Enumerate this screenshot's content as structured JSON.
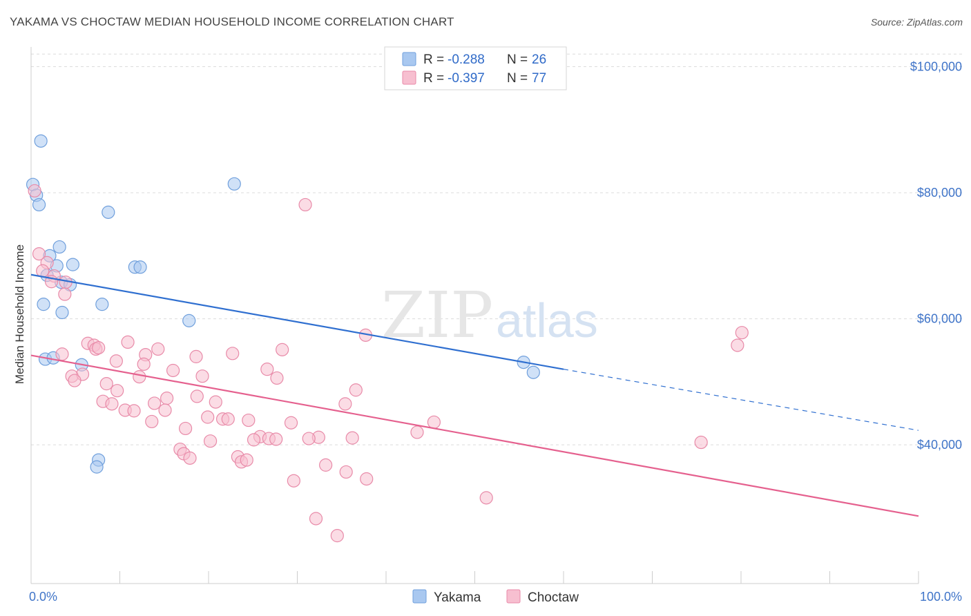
{
  "header": {
    "title": "YAKAMA VS CHOCTAW MEDIAN HOUSEHOLD INCOME CORRELATION CHART",
    "source": "Source: ZipAtlas.com"
  },
  "watermark": {
    "zip": "ZIP",
    "atlas": "atlas"
  },
  "legend_top": [
    {
      "r_label": "R = ",
      "r_value": "-0.288",
      "n_label": "N = ",
      "n_value": "26",
      "color": "#a9c8f0",
      "stroke": "#6f9fdc"
    },
    {
      "r_label": "R = ",
      "r_value": "-0.397",
      "n_label": "N = ",
      "n_value": "77",
      "color": "#f7bfd0",
      "stroke": "#e88aa8"
    }
  ],
  "legend_bottom": [
    {
      "label": "Yakama",
      "color": "#a9c8f0",
      "stroke": "#6f9fdc"
    },
    {
      "label": "Choctaw",
      "color": "#f7bfd0",
      "stroke": "#e88aa8"
    }
  ],
  "chart_data": {
    "type": "scatter",
    "title": "YAKAMA VS CHOCTAW MEDIAN HOUSEHOLD INCOME CORRELATION CHART",
    "xlabel": "",
    "ylabel": "Median Household Income",
    "xlim": [
      0,
      100
    ],
    "ylim": [
      18000,
      104000
    ],
    "x_tick_labels": [
      {
        "value": 0,
        "label": "0.0%"
      },
      {
        "value": 100,
        "label": "100.0%"
      }
    ],
    "y_ticks": [
      {
        "value": 40000,
        "label": "$40,000"
      },
      {
        "value": 60000,
        "label": "$60,000"
      },
      {
        "value": 80000,
        "label": "$80,000"
      },
      {
        "value": 100000,
        "label": "$100,000"
      }
    ],
    "grid": "horizontal dashed",
    "series": [
      {
        "name": "Yakama",
        "color": "#a9c8f0",
        "stroke": "#6f9fdc",
        "line_color": "#2f6fd0",
        "trend": {
          "x0": 0,
          "y0": 67000,
          "x1": 60,
          "y1": 52000,
          "dash_to_x": 100,
          "dash_to_y": 42300
        },
        "points": [
          [
            0.2,
            81300
          ],
          [
            1.1,
            88200
          ],
          [
            0.6,
            79600
          ],
          [
            0.9,
            78100
          ],
          [
            8.7,
            76900
          ],
          [
            22.9,
            81400
          ],
          [
            3.2,
            71400
          ],
          [
            2.1,
            70000
          ],
          [
            2.9,
            68400
          ],
          [
            4.7,
            68600
          ],
          [
            11.7,
            68200
          ],
          [
            12.3,
            68200
          ],
          [
            1.8,
            66900
          ],
          [
            3.4,
            65800
          ],
          [
            4.4,
            65400
          ],
          [
            1.4,
            62300
          ],
          [
            8.0,
            62300
          ],
          [
            3.5,
            61000
          ],
          [
            17.8,
            59700
          ],
          [
            1.6,
            53600
          ],
          [
            2.5,
            53800
          ],
          [
            5.7,
            52700
          ],
          [
            55.5,
            53100
          ],
          [
            56.6,
            51500
          ],
          [
            7.6,
            37600
          ],
          [
            7.4,
            36500
          ]
        ]
      },
      {
        "name": "Choctaw",
        "color": "#f7bfd0",
        "stroke": "#e88aa8",
        "line_color": "#e5608e",
        "trend": {
          "x0": 0,
          "y0": 54200,
          "x1": 100,
          "y1": 28700
        },
        "points": [
          [
            0.4,
            80300
          ],
          [
            30.9,
            78100
          ],
          [
            0.9,
            70300
          ],
          [
            1.8,
            68900
          ],
          [
            1.3,
            67600
          ],
          [
            2.6,
            66800
          ],
          [
            3.9,
            65800
          ],
          [
            2.3,
            65900
          ],
          [
            3.8,
            63900
          ],
          [
            37.7,
            57400
          ],
          [
            80.1,
            57800
          ],
          [
            79.6,
            55800
          ],
          [
            6.4,
            56100
          ],
          [
            10.9,
            56300
          ],
          [
            7.1,
            55800
          ],
          [
            7.3,
            55200
          ],
          [
            7.6,
            55400
          ],
          [
            14.3,
            55200
          ],
          [
            28.3,
            55100
          ],
          [
            3.5,
            54400
          ],
          [
            22.7,
            54500
          ],
          [
            12.9,
            54300
          ],
          [
            18.6,
            54000
          ],
          [
            9.6,
            53300
          ],
          [
            12.7,
            52800
          ],
          [
            16.0,
            51800
          ],
          [
            26.6,
            52000
          ],
          [
            5.8,
            51200
          ],
          [
            4.6,
            50900
          ],
          [
            12.2,
            50800
          ],
          [
            19.3,
            50900
          ],
          [
            27.7,
            50600
          ],
          [
            4.9,
            50200
          ],
          [
            8.5,
            49700
          ],
          [
            9.7,
            48600
          ],
          [
            36.6,
            48700
          ],
          [
            15.3,
            47400
          ],
          [
            18.7,
            47700
          ],
          [
            8.1,
            46900
          ],
          [
            13.9,
            46600
          ],
          [
            20.8,
            46800
          ],
          [
            9.1,
            46500
          ],
          [
            35.4,
            46500
          ],
          [
            10.6,
            45500
          ],
          [
            11.6,
            45400
          ],
          [
            15.1,
            45500
          ],
          [
            19.9,
            44400
          ],
          [
            21.6,
            44100
          ],
          [
            22.2,
            44100
          ],
          [
            24.5,
            43900
          ],
          [
            13.6,
            43700
          ],
          [
            29.3,
            43500
          ],
          [
            45.4,
            43600
          ],
          [
            17.4,
            42600
          ],
          [
            43.5,
            42000
          ],
          [
            25.8,
            41300
          ],
          [
            32.4,
            41200
          ],
          [
            26.8,
            41000
          ],
          [
            27.6,
            40900
          ],
          [
            31.3,
            41000
          ],
          [
            36.2,
            41100
          ],
          [
            25.1,
            40800
          ],
          [
            20.2,
            40600
          ],
          [
            75.5,
            40400
          ],
          [
            16.8,
            39300
          ],
          [
            17.2,
            38600
          ],
          [
            17.9,
            37900
          ],
          [
            23.3,
            38100
          ],
          [
            23.7,
            37300
          ],
          [
            24.3,
            37600
          ],
          [
            33.2,
            36800
          ],
          [
            35.5,
            35700
          ],
          [
            37.8,
            34600
          ],
          [
            29.6,
            34300
          ],
          [
            51.3,
            31600
          ],
          [
            32.1,
            28300
          ],
          [
            34.5,
            25600
          ]
        ]
      }
    ]
  }
}
